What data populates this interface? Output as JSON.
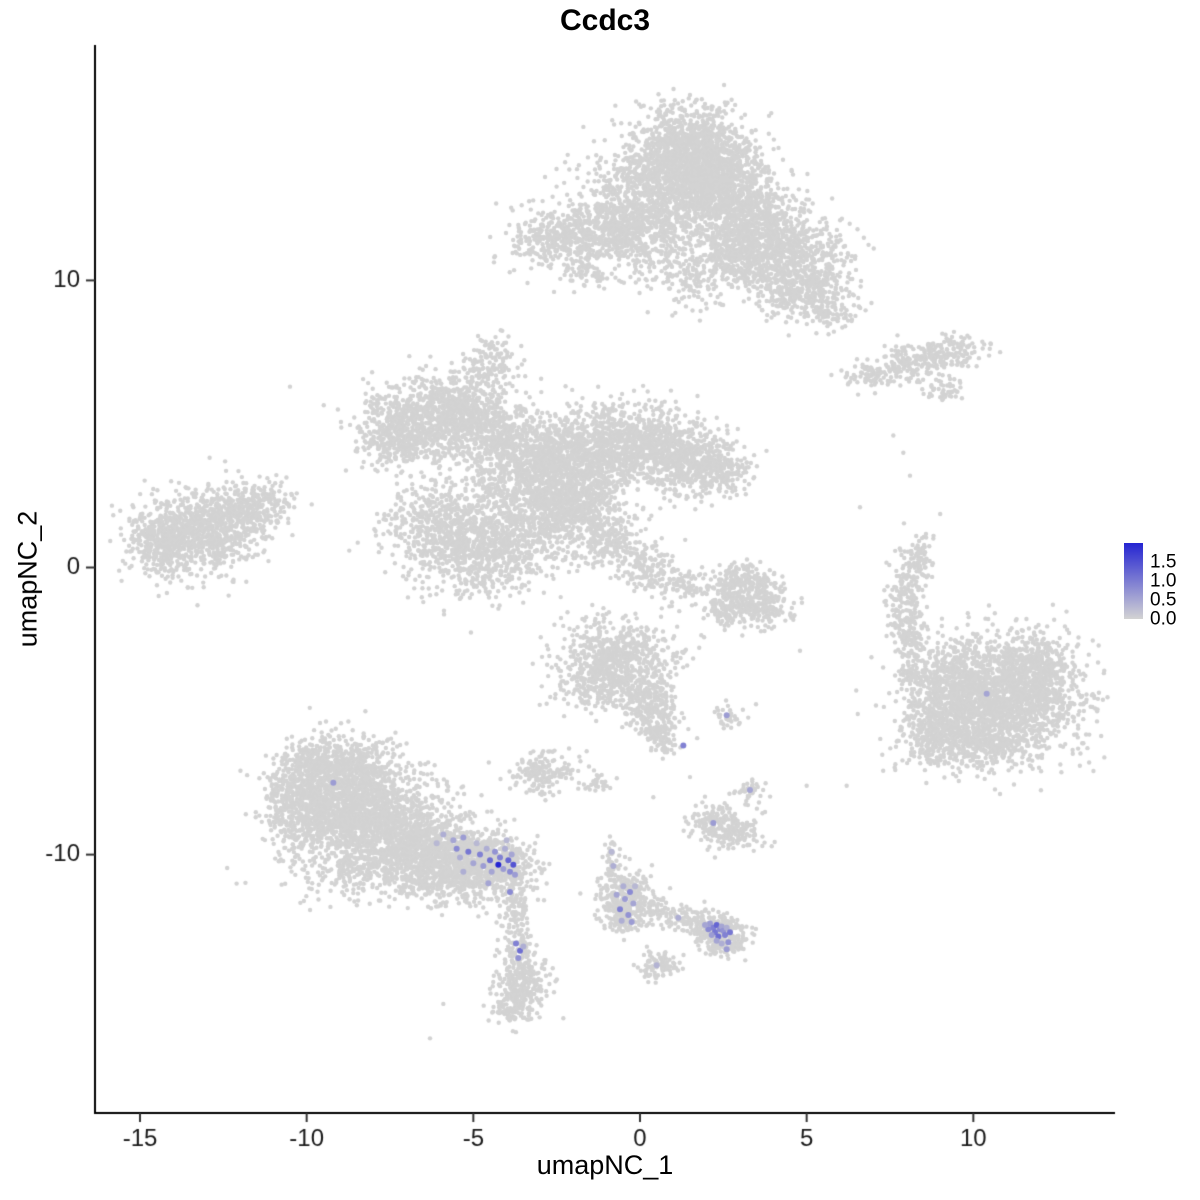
{
  "chart_data": {
    "type": "scatter",
    "title": "Ccdc3",
    "xlabel": "umapNC_1",
    "ylabel": "umapNC_2",
    "xlim": [
      -16.35,
      14.25
    ],
    "ylim": [
      -19.0,
      18.2
    ],
    "x_ticks": [
      -15,
      -10,
      -5,
      0,
      5,
      10
    ],
    "x_tick_labels": [
      "-15",
      "-10",
      "-5",
      "0",
      "5",
      "10"
    ],
    "y_ticks": [
      -10,
      0,
      10
    ],
    "y_tick_labels": [
      "-10",
      "0",
      "10"
    ],
    "grid": false,
    "legend": {
      "position": "right",
      "tick_labels": [
        "1.5",
        "1.0",
        "0.5",
        "0.0"
      ],
      "tick_values": [
        1.5,
        1.0,
        0.5,
        0.0
      ],
      "bar_value_range": [
        0,
        2.0
      ],
      "low_color": "#D3D3D3",
      "high_color": "#2525D2"
    },
    "point_style": {
      "base_color": "#D3D3D3",
      "radius_px": 2.2,
      "expression_radius_px": 3.0,
      "value_range": [
        0,
        1.9
      ],
      "seed": 42
    },
    "background_clusters": [
      {
        "name": "top-main",
        "blobs": [
          [
            1.5,
            14.5,
            0.9,
            0.8,
            1100
          ],
          [
            0.8,
            13.2,
            1.2,
            0.8,
            900
          ],
          [
            2.3,
            13.3,
            0.8,
            0.7,
            600
          ],
          [
            -0.6,
            11.9,
            1.1,
            0.5,
            550
          ],
          [
            -2.3,
            11.4,
            0.9,
            0.45,
            350
          ],
          [
            3.3,
            12.0,
            0.8,
            0.7,
            500
          ],
          [
            4.5,
            10.9,
            0.9,
            0.8,
            650
          ],
          [
            4.9,
            9.6,
            0.7,
            0.5,
            300
          ],
          [
            2.9,
            10.7,
            0.6,
            0.5,
            250
          ],
          [
            0.7,
            10.6,
            0.9,
            0.5,
            180
          ],
          [
            1.8,
            9.8,
            0.5,
            0.4,
            80
          ],
          [
            5.8,
            8.8,
            0.35,
            0.3,
            60
          ],
          [
            -1.7,
            10.3,
            0.4,
            0.3,
            60
          ]
        ]
      },
      {
        "name": "mid-complex",
        "blobs": [
          [
            -6.4,
            5.2,
            0.9,
            0.7,
            700
          ],
          [
            -7.3,
            4.5,
            0.6,
            0.5,
            280
          ],
          [
            -5.3,
            5.6,
            0.6,
            0.5,
            280
          ],
          [
            -4.4,
            4.6,
            0.7,
            0.7,
            350
          ],
          [
            -4.4,
            7.0,
            0.45,
            0.55,
            160
          ],
          [
            -3.3,
            3.4,
            0.9,
            0.8,
            600
          ],
          [
            -1.7,
            3.9,
            1.0,
            0.8,
            750
          ],
          [
            -0.2,
            4.4,
            0.9,
            0.7,
            600
          ],
          [
            1.1,
            3.9,
            0.8,
            0.6,
            450
          ],
          [
            2.3,
            3.4,
            0.6,
            0.45,
            250
          ],
          [
            -5.8,
            1.4,
            0.9,
            0.9,
            700
          ],
          [
            -4.5,
            0.4,
            0.8,
            0.7,
            450
          ],
          [
            -3.0,
            1.6,
            0.9,
            0.8,
            550
          ],
          [
            -1.9,
            2.3,
            0.7,
            0.6,
            350
          ],
          [
            -0.9,
            0.9,
            0.5,
            0.5,
            200
          ],
          [
            0.2,
            0.1,
            0.45,
            0.4,
            130
          ],
          [
            1.2,
            -0.6,
            0.4,
            0.3,
            80
          ]
        ]
      },
      {
        "name": "left",
        "blobs": [
          [
            -13.3,
            1.2,
            0.9,
            0.75,
            800
          ],
          [
            -12.0,
            1.9,
            0.6,
            0.5,
            300
          ],
          [
            -14.4,
            0.8,
            0.5,
            0.5,
            220
          ],
          [
            -11.2,
            2.4,
            0.4,
            0.3,
            80
          ]
        ]
      },
      {
        "name": "right-top",
        "blobs": [
          [
            8.2,
            7.2,
            0.65,
            0.3,
            160
          ],
          [
            9.4,
            7.5,
            0.5,
            0.3,
            120
          ],
          [
            7.0,
            6.7,
            0.45,
            0.25,
            80
          ],
          [
            9.1,
            6.2,
            0.35,
            0.2,
            50
          ]
        ]
      },
      {
        "name": "right-thin",
        "blobs": [
          [
            8.0,
            -1.3,
            0.28,
            0.75,
            180
          ],
          [
            8.15,
            -2.6,
            0.2,
            0.4,
            60
          ],
          [
            8.3,
            0.3,
            0.25,
            0.5,
            90
          ],
          [
            8.1,
            -3.7,
            0.2,
            0.25,
            40
          ]
        ]
      },
      {
        "name": "right-big",
        "blobs": [
          [
            10.7,
            -4.6,
            1.25,
            1.05,
            2000
          ],
          [
            9.4,
            -4.2,
            0.6,
            0.8,
            400
          ],
          [
            8.8,
            -5.9,
            0.45,
            0.5,
            220
          ],
          [
            11.9,
            -3.4,
            0.5,
            0.5,
            250
          ],
          [
            10.2,
            -6.2,
            0.6,
            0.4,
            200
          ]
        ]
      },
      {
        "name": "center-right",
        "blobs": [
          [
            3.0,
            -0.6,
            0.5,
            0.4,
            240
          ],
          [
            3.7,
            -1.3,
            0.45,
            0.4,
            200
          ],
          [
            2.6,
            -1.5,
            0.35,
            0.3,
            110
          ]
        ]
      },
      {
        "name": "center",
        "blobs": [
          [
            -0.7,
            -3.2,
            0.85,
            0.7,
            650
          ],
          [
            -1.3,
            -4.1,
            0.4,
            0.4,
            150
          ],
          [
            0.3,
            -4.6,
            0.4,
            0.5,
            220
          ],
          [
            0.6,
            -5.7,
            0.3,
            0.4,
            130
          ]
        ]
      },
      {
        "name": "small-left-mid",
        "blobs": [
          [
            -2.9,
            -7.1,
            0.5,
            0.35,
            170
          ],
          [
            -1.2,
            -7.5,
            0.2,
            0.2,
            35
          ]
        ]
      },
      {
        "name": "bottom-left",
        "blobs": [
          [
            -8.7,
            -7.0,
            0.8,
            0.6,
            480
          ],
          [
            -9.4,
            -8.4,
            0.85,
            0.85,
            850
          ],
          [
            -7.9,
            -8.7,
            0.95,
            0.9,
            900
          ],
          [
            -6.6,
            -9.7,
            0.9,
            0.7,
            750
          ],
          [
            -5.3,
            -10.2,
            0.8,
            0.55,
            550
          ],
          [
            -4.3,
            -10.4,
            0.6,
            0.45,
            400
          ],
          [
            -10.4,
            -8.1,
            0.45,
            0.65,
            230
          ],
          [
            -8.2,
            -10.6,
            1.3,
            0.5,
            250
          ],
          [
            -6.0,
            -11.2,
            0.8,
            0.35,
            120
          ],
          [
            -9.9,
            -6.7,
            0.4,
            0.4,
            150
          ]
        ]
      },
      {
        "name": "strand",
        "blobs": [
          [
            -3.75,
            -12.0,
            0.25,
            0.45,
            90
          ],
          [
            -3.65,
            -13.3,
            0.25,
            0.4,
            80
          ],
          [
            -3.55,
            -14.6,
            0.4,
            0.55,
            260
          ],
          [
            -3.85,
            -15.45,
            0.25,
            0.2,
            50
          ]
        ]
      },
      {
        "name": "bottom-center-arm",
        "blobs": [
          [
            -0.85,
            -10.1,
            0.15,
            0.4,
            40
          ],
          [
            -0.4,
            -11.4,
            0.45,
            0.45,
            220
          ],
          [
            -0.5,
            -12.15,
            0.35,
            0.3,
            140
          ],
          [
            0.4,
            -11.9,
            0.3,
            0.25,
            60
          ],
          [
            1.1,
            -12.2,
            0.3,
            0.2,
            50
          ],
          [
            1.7,
            -12.4,
            0.25,
            0.2,
            45
          ],
          [
            2.3,
            -12.65,
            0.4,
            0.3,
            230
          ],
          [
            2.6,
            -13.1,
            0.3,
            0.25,
            90
          ]
        ]
      },
      {
        "name": "small-bottom",
        "blobs": [
          [
            0.55,
            -13.9,
            0.3,
            0.25,
            90
          ]
        ]
      },
      {
        "name": "small-right-low",
        "blobs": [
          [
            2.15,
            -8.8,
            0.3,
            0.3,
            90
          ],
          [
            2.75,
            -9.2,
            0.5,
            0.35,
            160
          ],
          [
            3.3,
            -7.8,
            0.25,
            0.2,
            40
          ],
          [
            2.6,
            -5.2,
            0.25,
            0.2,
            35
          ]
        ]
      }
    ],
    "singleton_points": [
      [
        -10.5,
        6.3
      ],
      [
        5.0,
        -7.6
      ],
      [
        6.2,
        -7.6
      ],
      [
        7.6,
        4.6
      ],
      [
        7.9,
        4.0
      ],
      [
        8.1,
        3.2
      ],
      [
        -5.9,
        -15.2
      ],
      [
        -6.3,
        -16.4
      ],
      [
        -2.3,
        -15.7
      ],
      [
        1.5,
        -7.3
      ],
      [
        0.4,
        -8.0
      ],
      [
        -1.6,
        -6.4
      ],
      [
        4.8,
        -2.9
      ],
      [
        6.6,
        2.1
      ]
    ],
    "expression_points": [
      [
        -5.6,
        -9.5,
        0.5
      ],
      [
        -5.5,
        -9.8,
        0.8
      ],
      [
        -5.4,
        -10.1,
        0.4
      ],
      [
        -5.3,
        -9.4,
        0.6
      ],
      [
        -5.15,
        -9.9,
        1.0
      ],
      [
        -5.0,
        -10.3,
        0.5
      ],
      [
        -4.9,
        -9.6,
        0.3
      ],
      [
        -4.8,
        -10.0,
        0.9
      ],
      [
        -4.7,
        -10.4,
        0.6
      ],
      [
        -4.6,
        -9.8,
        0.4
      ],
      [
        -4.5,
        -10.2,
        1.1
      ],
      [
        -4.45,
        -10.6,
        0.5
      ],
      [
        -4.35,
        -9.9,
        0.7
      ],
      [
        -4.25,
        -10.35,
        1.9
      ],
      [
        -4.2,
        -10.1,
        0.9
      ],
      [
        -4.1,
        -10.5,
        0.6
      ],
      [
        -4.05,
        -9.8,
        0.4
      ],
      [
        -3.95,
        -10.2,
        1.2
      ],
      [
        -3.9,
        -10.6,
        0.8
      ],
      [
        -3.85,
        -10.0,
        0.5
      ],
      [
        -3.8,
        -10.35,
        1.4
      ],
      [
        -3.75,
        -10.7,
        0.6
      ],
      [
        -5.9,
        -9.3,
        0.4
      ],
      [
        -6.1,
        -9.6,
        0.3
      ],
      [
        -4.55,
        -11.0,
        0.5
      ],
      [
        -3.9,
        -11.3,
        0.8
      ],
      [
        -5.3,
        -10.6,
        0.4
      ],
      [
        -4.0,
        -9.5,
        0.3
      ],
      [
        -3.72,
        -13.1,
        0.9
      ],
      [
        -3.6,
        -13.35,
        1.1
      ],
      [
        -3.65,
        -13.6,
        0.7
      ],
      [
        -3.5,
        -13.2,
        0.4
      ],
      [
        -0.5,
        -11.1,
        0.4
      ],
      [
        -0.3,
        -11.3,
        0.8
      ],
      [
        -0.45,
        -11.55,
        0.6
      ],
      [
        -0.2,
        -11.7,
        0.5
      ],
      [
        -0.6,
        -11.9,
        0.9
      ],
      [
        -0.35,
        -12.1,
        0.7
      ],
      [
        -0.55,
        -12.3,
        0.4
      ],
      [
        -0.15,
        -11.1,
        0.3
      ],
      [
        -0.7,
        -11.4,
        0.5
      ],
      [
        -0.25,
        -12.35,
        0.6
      ],
      [
        -0.8,
        -10.4,
        0.4
      ],
      [
        -0.85,
        -9.9,
        0.3
      ],
      [
        2.1,
        -12.4,
        0.6
      ],
      [
        2.2,
        -12.55,
        0.9
      ],
      [
        2.3,
        -12.45,
        1.2
      ],
      [
        2.4,
        -12.6,
        0.8
      ],
      [
        2.25,
        -12.7,
        1.0
      ],
      [
        2.45,
        -12.5,
        0.5
      ],
      [
        2.5,
        -12.65,
        0.7
      ],
      [
        2.35,
        -12.85,
        1.1
      ],
      [
        2.15,
        -12.8,
        0.6
      ],
      [
        2.55,
        -12.8,
        0.9
      ],
      [
        2.6,
        -12.55,
        0.4
      ],
      [
        2.05,
        -12.6,
        0.8
      ],
      [
        2.3,
        -13.0,
        0.5
      ],
      [
        2.65,
        -13.05,
        0.7
      ],
      [
        2.7,
        -12.7,
        1.0
      ],
      [
        2.45,
        -13.1,
        0.4
      ],
      [
        1.95,
        -12.45,
        0.5
      ],
      [
        2.6,
        -13.3,
        0.6
      ],
      [
        -9.2,
        -7.5,
        0.6
      ],
      [
        10.4,
        -4.4,
        0.5
      ],
      [
        1.3,
        -6.2,
        0.9
      ],
      [
        2.6,
        -5.15,
        0.6
      ],
      [
        3.3,
        -7.75,
        0.5
      ],
      [
        2.2,
        -8.9,
        0.6
      ],
      [
        1.15,
        -12.2,
        0.4
      ],
      [
        0.5,
        -13.85,
        0.35
      ]
    ]
  }
}
